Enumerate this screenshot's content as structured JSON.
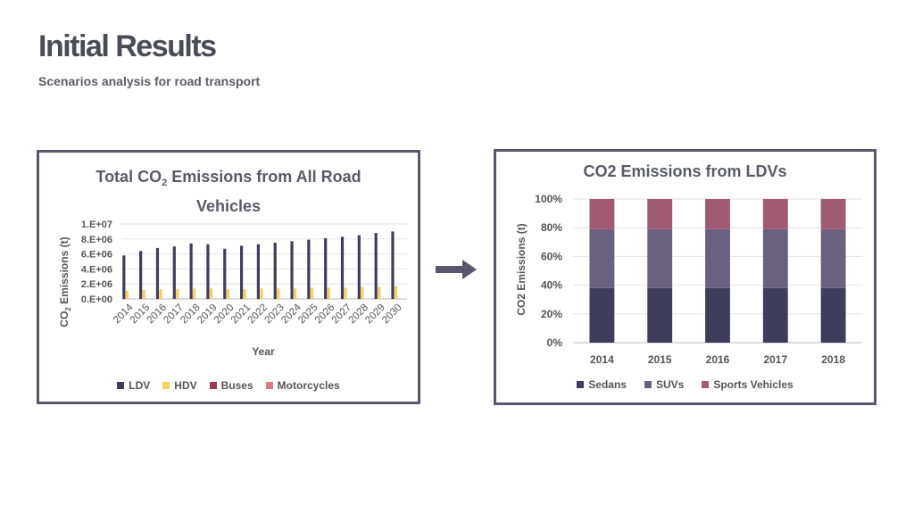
{
  "page": {
    "title": "Initial Results",
    "subtitle": "Scenarios analysis for road transport"
  },
  "chart_data": [
    {
      "type": "bar",
      "title_main": "Total CO",
      "title_sub": "2",
      "title_rest": " Emissions from All Road",
      "title_line2": "Vehicles",
      "xlabel": "Year",
      "ylabel_main": "CO",
      "ylabel_sub": "2",
      "ylabel_rest": " Emissions (t)",
      "ylim": [
        0,
        10000000
      ],
      "yticks": [
        "0.E+00",
        "2.E+06",
        "4.E+06",
        "6.E+06",
        "8.E+06",
        "1.E+07"
      ],
      "grid": true,
      "legend_position": "bottom",
      "categories": [
        "2014",
        "2015",
        "2016",
        "2017",
        "2018",
        "2019",
        "2020",
        "2021",
        "2022",
        "2023",
        "2024",
        "2025",
        "2026",
        "2027",
        "2028",
        "2029",
        "2030"
      ],
      "series": [
        {
          "name": "LDV",
          "color": "#3f3d5c",
          "values": [
            5800000,
            6400000,
            6800000,
            7000000,
            7400000,
            7300000,
            6700000,
            7100000,
            7300000,
            7500000,
            7700000,
            7900000,
            8100000,
            8300000,
            8500000,
            8800000,
            9000000
          ]
        },
        {
          "name": "HDV",
          "color": "#f2d160",
          "values": [
            1100000,
            1200000,
            1300000,
            1300000,
            1400000,
            1400000,
            1300000,
            1300000,
            1400000,
            1400000,
            1400000,
            1500000,
            1500000,
            1500000,
            1600000,
            1600000,
            1700000
          ]
        },
        {
          "name": "Buses",
          "color": "#9b3a50",
          "values": [
            0,
            0,
            0,
            0,
            0,
            0,
            0,
            0,
            0,
            0,
            0,
            0,
            0,
            0,
            0,
            0,
            0
          ]
        },
        {
          "name": "Motorcycles",
          "color": "#e07a82",
          "values": [
            0,
            0,
            0,
            0,
            0,
            0,
            0,
            0,
            0,
            0,
            0,
            0,
            0,
            0,
            0,
            0,
            0
          ]
        }
      ]
    },
    {
      "type": "bar",
      "stacked": true,
      "title": "CO2 Emissions from LDVs",
      "ylabel": "CO2 Emissions (t)",
      "ylim": [
        0,
        100
      ],
      "yticks": [
        "0%",
        "20%",
        "40%",
        "60%",
        "80%",
        "100%"
      ],
      "grid": true,
      "legend_position": "bottom",
      "categories": [
        "2014",
        "2015",
        "2016",
        "2017",
        "2018"
      ],
      "series": [
        {
          "name": "Sedans",
          "color": "#3f3d5c",
          "values": [
            38,
            38,
            38,
            38,
            38
          ]
        },
        {
          "name": "SUVs",
          "color": "#6a607f",
          "values": [
            41,
            41,
            41,
            41,
            41
          ]
        },
        {
          "name": "Sports Vehicles",
          "color": "#a05a72",
          "values": [
            21,
            21,
            21,
            21,
            21
          ]
        }
      ]
    }
  ]
}
